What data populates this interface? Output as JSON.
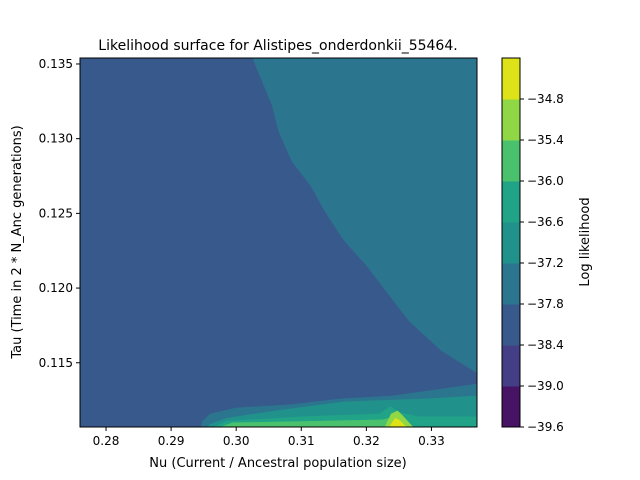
{
  "chart_data": {
    "type": "heatmap",
    "subtype": "filled-contour",
    "title": "Likelihood surface for Alistipes_onderdonkii_55464.",
    "xlabel": "Nu (Current / Ancestral population size)",
    "ylabel": "Tau (Time in 2 * N_Anc generations)",
    "xlim": [
      0.276,
      0.337
    ],
    "ylim": [
      0.1107,
      0.1354
    ],
    "xticks": [
      "0.28",
      "0.29",
      "0.30",
      "0.31",
      "0.32",
      "0.33"
    ],
    "xtick_values": [
      0.28,
      0.29,
      0.3,
      0.31,
      0.32,
      0.33
    ],
    "yticks": [
      "0.115",
      "0.120",
      "0.125",
      "0.130",
      "0.135"
    ],
    "ytick_values": [
      0.115,
      0.12,
      0.125,
      0.13,
      0.135
    ],
    "colorbar": {
      "label": "Log likelihood",
      "levels": [
        -39.6,
        -39.0,
        -38.4,
        -37.8,
        -37.2,
        -36.6,
        -36.0,
        -35.4,
        -34.8
      ],
      "ticks": [
        "−39.6",
        "−39.0",
        "−38.4",
        "−37.8",
        "−37.2",
        "−36.6",
        "−36.0",
        "−35.4",
        "−34.8"
      ],
      "colors": [
        "#471365",
        "#433e85",
        "#38598c",
        "#2b758e",
        "#21918c",
        "#20a386",
        "#4ac16d",
        "#8fd744",
        "#dde318"
      ]
    },
    "regions": [
      {
        "level_index": 0,
        "polygon": [
          [
            0.276,
            0.1107
          ],
          [
            0.2905,
            0.1107
          ],
          [
            0.2925,
            0.1125
          ],
          [
            0.2905,
            0.1133
          ],
          [
            0.287,
            0.1128
          ],
          [
            0.283,
            0.1124
          ],
          [
            0.2795,
            0.1136
          ],
          [
            0.2784,
            0.1168
          ],
          [
            0.276,
            0.1178
          ]
        ]
      },
      {
        "level_index": 1,
        "polygon": [
          [
            0.276,
            0.1107
          ],
          [
            0.2925,
            0.1107
          ],
          [
            0.2965,
            0.1122
          ],
          [
            0.3,
            0.1125
          ],
          [
            0.318,
            0.1128
          ],
          [
            0.337,
            0.1135
          ],
          [
            0.337,
            0.1143
          ],
          [
            0.32,
            0.1141
          ],
          [
            0.311,
            0.1148
          ],
          [
            0.304,
            0.1157
          ],
          [
            0.3,
            0.116
          ],
          [
            0.2985,
            0.1168
          ],
          [
            0.296,
            0.118
          ],
          [
            0.294,
            0.119
          ],
          [
            0.292,
            0.1205
          ],
          [
            0.29,
            0.122
          ],
          [
            0.288,
            0.1238
          ],
          [
            0.2855,
            0.1255
          ],
          [
            0.284,
            0.1265
          ],
          [
            0.282,
            0.128
          ],
          [
            0.2795,
            0.1295
          ],
          [
            0.276,
            0.1308
          ]
        ]
      },
      {
        "level_index": 2,
        "polygon": [
          [
            0.276,
            0.1107
          ],
          [
            0.3235,
            0.1107
          ],
          [
            0.3237,
            0.1125
          ],
          [
            0.337,
            0.1135
          ],
          [
            0.337,
            0.1143
          ],
          [
            0.3315,
            0.1158
          ],
          [
            0.3265,
            0.1178
          ],
          [
            0.323,
            0.1198
          ],
          [
            0.32,
            0.1215
          ],
          [
            0.3165,
            0.1232
          ],
          [
            0.3135,
            0.1252
          ],
          [
            0.3115,
            0.1268
          ],
          [
            0.3085,
            0.1285
          ],
          [
            0.3065,
            0.1305
          ],
          [
            0.3055,
            0.1322
          ],
          [
            0.304,
            0.1338
          ],
          [
            0.3025,
            0.1354
          ],
          [
            0.276,
            0.1354
          ]
        ]
      },
      {
        "level_index": 3,
        "polygon": [
          [
            0.2945,
            0.1107
          ],
          [
            0.337,
            0.1107
          ],
          [
            0.337,
            0.1136
          ],
          [
            0.324,
            0.1128
          ],
          [
            0.316,
            0.1126
          ],
          [
            0.308,
            0.1122
          ],
          [
            0.3,
            0.112
          ],
          [
            0.296,
            0.1116
          ],
          [
            0.2948,
            0.1111
          ]
        ]
      },
      {
        "level_index": 4,
        "polygon": [
          [
            0.2955,
            0.1107
          ],
          [
            0.337,
            0.1107
          ],
          [
            0.337,
            0.1128
          ],
          [
            0.329,
            0.1126
          ],
          [
            0.3165,
            0.1124
          ],
          [
            0.306,
            0.1118
          ],
          [
            0.2985,
            0.1113
          ],
          [
            0.296,
            0.1109
          ]
        ]
      },
      {
        "level_index": 5,
        "polygon": [
          [
            0.2965,
            0.1107
          ],
          [
            0.337,
            0.1107
          ],
          [
            0.337,
            0.1114
          ],
          [
            0.328,
            0.1114
          ],
          [
            0.325,
            0.1117
          ],
          [
            0.3237,
            0.1121
          ],
          [
            0.322,
            0.1116
          ],
          [
            0.31,
            0.1114
          ],
          [
            0.2985,
            0.1111
          ]
        ]
      },
      {
        "level_index": 6,
        "polygon": [
          [
            0.2975,
            0.1107
          ],
          [
            0.3232,
            0.1107
          ],
          [
            0.3234,
            0.1113
          ],
          [
            0.3225,
            0.1112
          ],
          [
            0.312,
            0.1111
          ],
          [
            0.2995,
            0.111
          ]
        ]
      },
      {
        "level_index": 7,
        "polygon": [
          [
            0.3228,
            0.1107
          ],
          [
            0.3272,
            0.1107
          ],
          [
            0.3255,
            0.1115
          ],
          [
            0.3248,
            0.1118
          ],
          [
            0.3238,
            0.1116
          ]
        ]
      },
      {
        "level_index": 8,
        "polygon": [
          [
            0.3235,
            0.1107
          ],
          [
            0.3262,
            0.1107
          ],
          [
            0.325,
            0.1112
          ],
          [
            0.3244,
            0.1113
          ]
        ]
      }
    ]
  }
}
